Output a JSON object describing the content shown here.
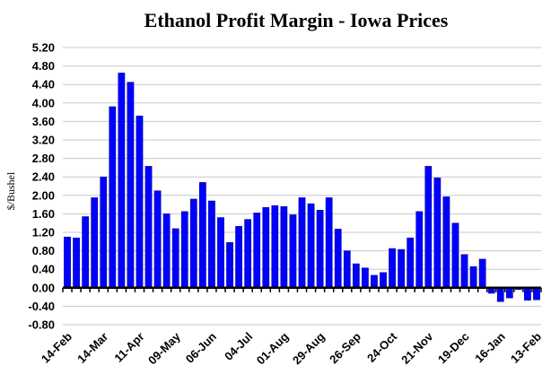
{
  "chart_data": {
    "type": "bar",
    "title": "Ethanol Profit Margin - Iowa Prices",
    "xlabel": "",
    "ylabel": "$/Bushel",
    "ylim": [
      -0.8,
      5.2
    ],
    "yticks": [
      "5.20",
      "4.80",
      "4.40",
      "4.00",
      "3.60",
      "3.20",
      "2.80",
      "2.40",
      "2.00",
      "1.60",
      "1.20",
      "0.80",
      "0.40",
      "0.00",
      "-0.40",
      "-0.80"
    ],
    "xtick_labels": [
      "14-Feb",
      "14-Mar",
      "11-Apr",
      "09-May",
      "06-Jun",
      "04-Jul",
      "01-Aug",
      "29-Aug",
      "26-Sep",
      "24-Oct",
      "21-Nov",
      "19-Dec",
      "16-Jan",
      "13-Feb"
    ],
    "xtick_every": 4,
    "grid": "horizontal",
    "bar_color": "#0000FF",
    "values": [
      1.1,
      1.08,
      1.54,
      1.95,
      2.4,
      3.92,
      4.65,
      4.45,
      3.72,
      2.63,
      2.1,
      1.6,
      1.28,
      1.65,
      1.92,
      2.28,
      1.88,
      1.52,
      0.98,
      1.33,
      1.48,
      1.62,
      1.74,
      1.78,
      1.76,
      1.58,
      1.95,
      1.82,
      1.68,
      1.95,
      1.27,
      0.8,
      0.52,
      0.43,
      0.27,
      0.33,
      0.85,
      0.83,
      1.08,
      1.65,
      2.63,
      2.38,
      1.97,
      1.4,
      0.72,
      0.46,
      0.62,
      -0.12,
      -0.3,
      -0.22,
      -0.04,
      -0.27,
      -0.26
    ]
  }
}
